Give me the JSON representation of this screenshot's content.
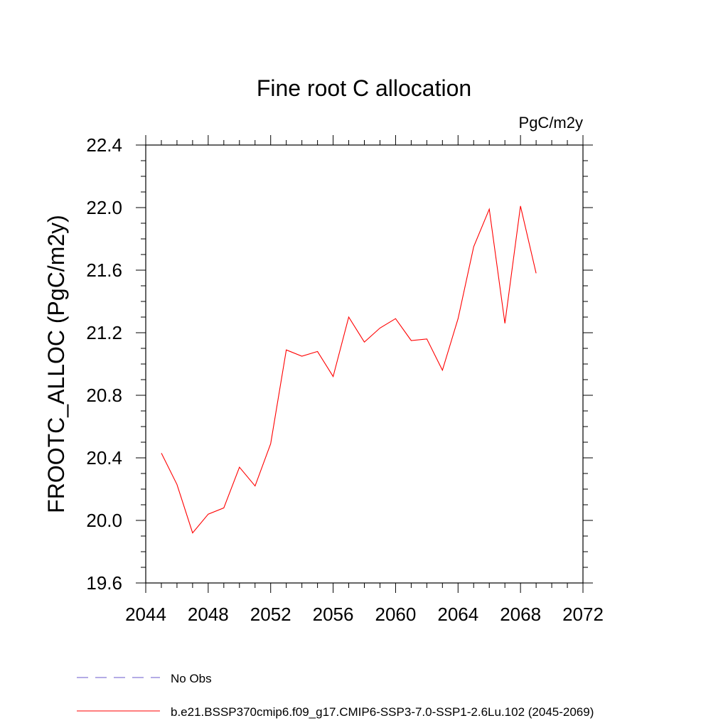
{
  "chart_data": {
    "type": "line",
    "title": "Fine root C allocation",
    "units": "PgC/m2y",
    "ylabel": "FROOTC_ALLOC  (PgC/m2y)",
    "xlabel": "",
    "xlim": [
      2044,
      2072
    ],
    "ylim": [
      19.6,
      22.4
    ],
    "xticks": [
      2044,
      2048,
      2052,
      2056,
      2060,
      2064,
      2068,
      2072
    ],
    "yticks": [
      19.6,
      20.0,
      20.4,
      20.8,
      21.2,
      21.6,
      22.0,
      22.4
    ],
    "ytick_labels": [
      "19.6",
      "20.0",
      "20.4",
      "20.8",
      "21.2",
      "21.6",
      "22.0",
      "22.4"
    ],
    "grid": false,
    "legend": {
      "placement": "bottom-left",
      "entries": [
        {
          "label": "No Obs",
          "style": "dashed",
          "color": "#6a5acd"
        },
        {
          "label": "b.e21.BSSP370cmip6.f09_g17.CMIP6-SSP3-7.0-SSP1-2.6Lu.102 (2045-2069)",
          "style": "solid",
          "color": "#ff0000"
        }
      ]
    },
    "series": [
      {
        "name": "b.e21.BSSP370cmip6.f09_g17.CMIP6-SSP3-7.0-SSP1-2.6Lu.102 (2045-2069)",
        "color": "#ff0000",
        "x": [
          2045,
          2046,
          2047,
          2048,
          2049,
          2050,
          2051,
          2052,
          2053,
          2054,
          2055,
          2056,
          2057,
          2058,
          2059,
          2060,
          2061,
          2062,
          2063,
          2064,
          2065,
          2066,
          2067,
          2068,
          2069
        ],
        "values": [
          20.43,
          20.23,
          19.92,
          20.04,
          20.08,
          20.34,
          20.22,
          20.49,
          21.09,
          21.05,
          21.08,
          20.92,
          21.3,
          21.14,
          21.23,
          21.29,
          21.15,
          21.16,
          20.96,
          21.29,
          21.75,
          21.99,
          21.26,
          22.01,
          21.58
        ]
      }
    ]
  }
}
